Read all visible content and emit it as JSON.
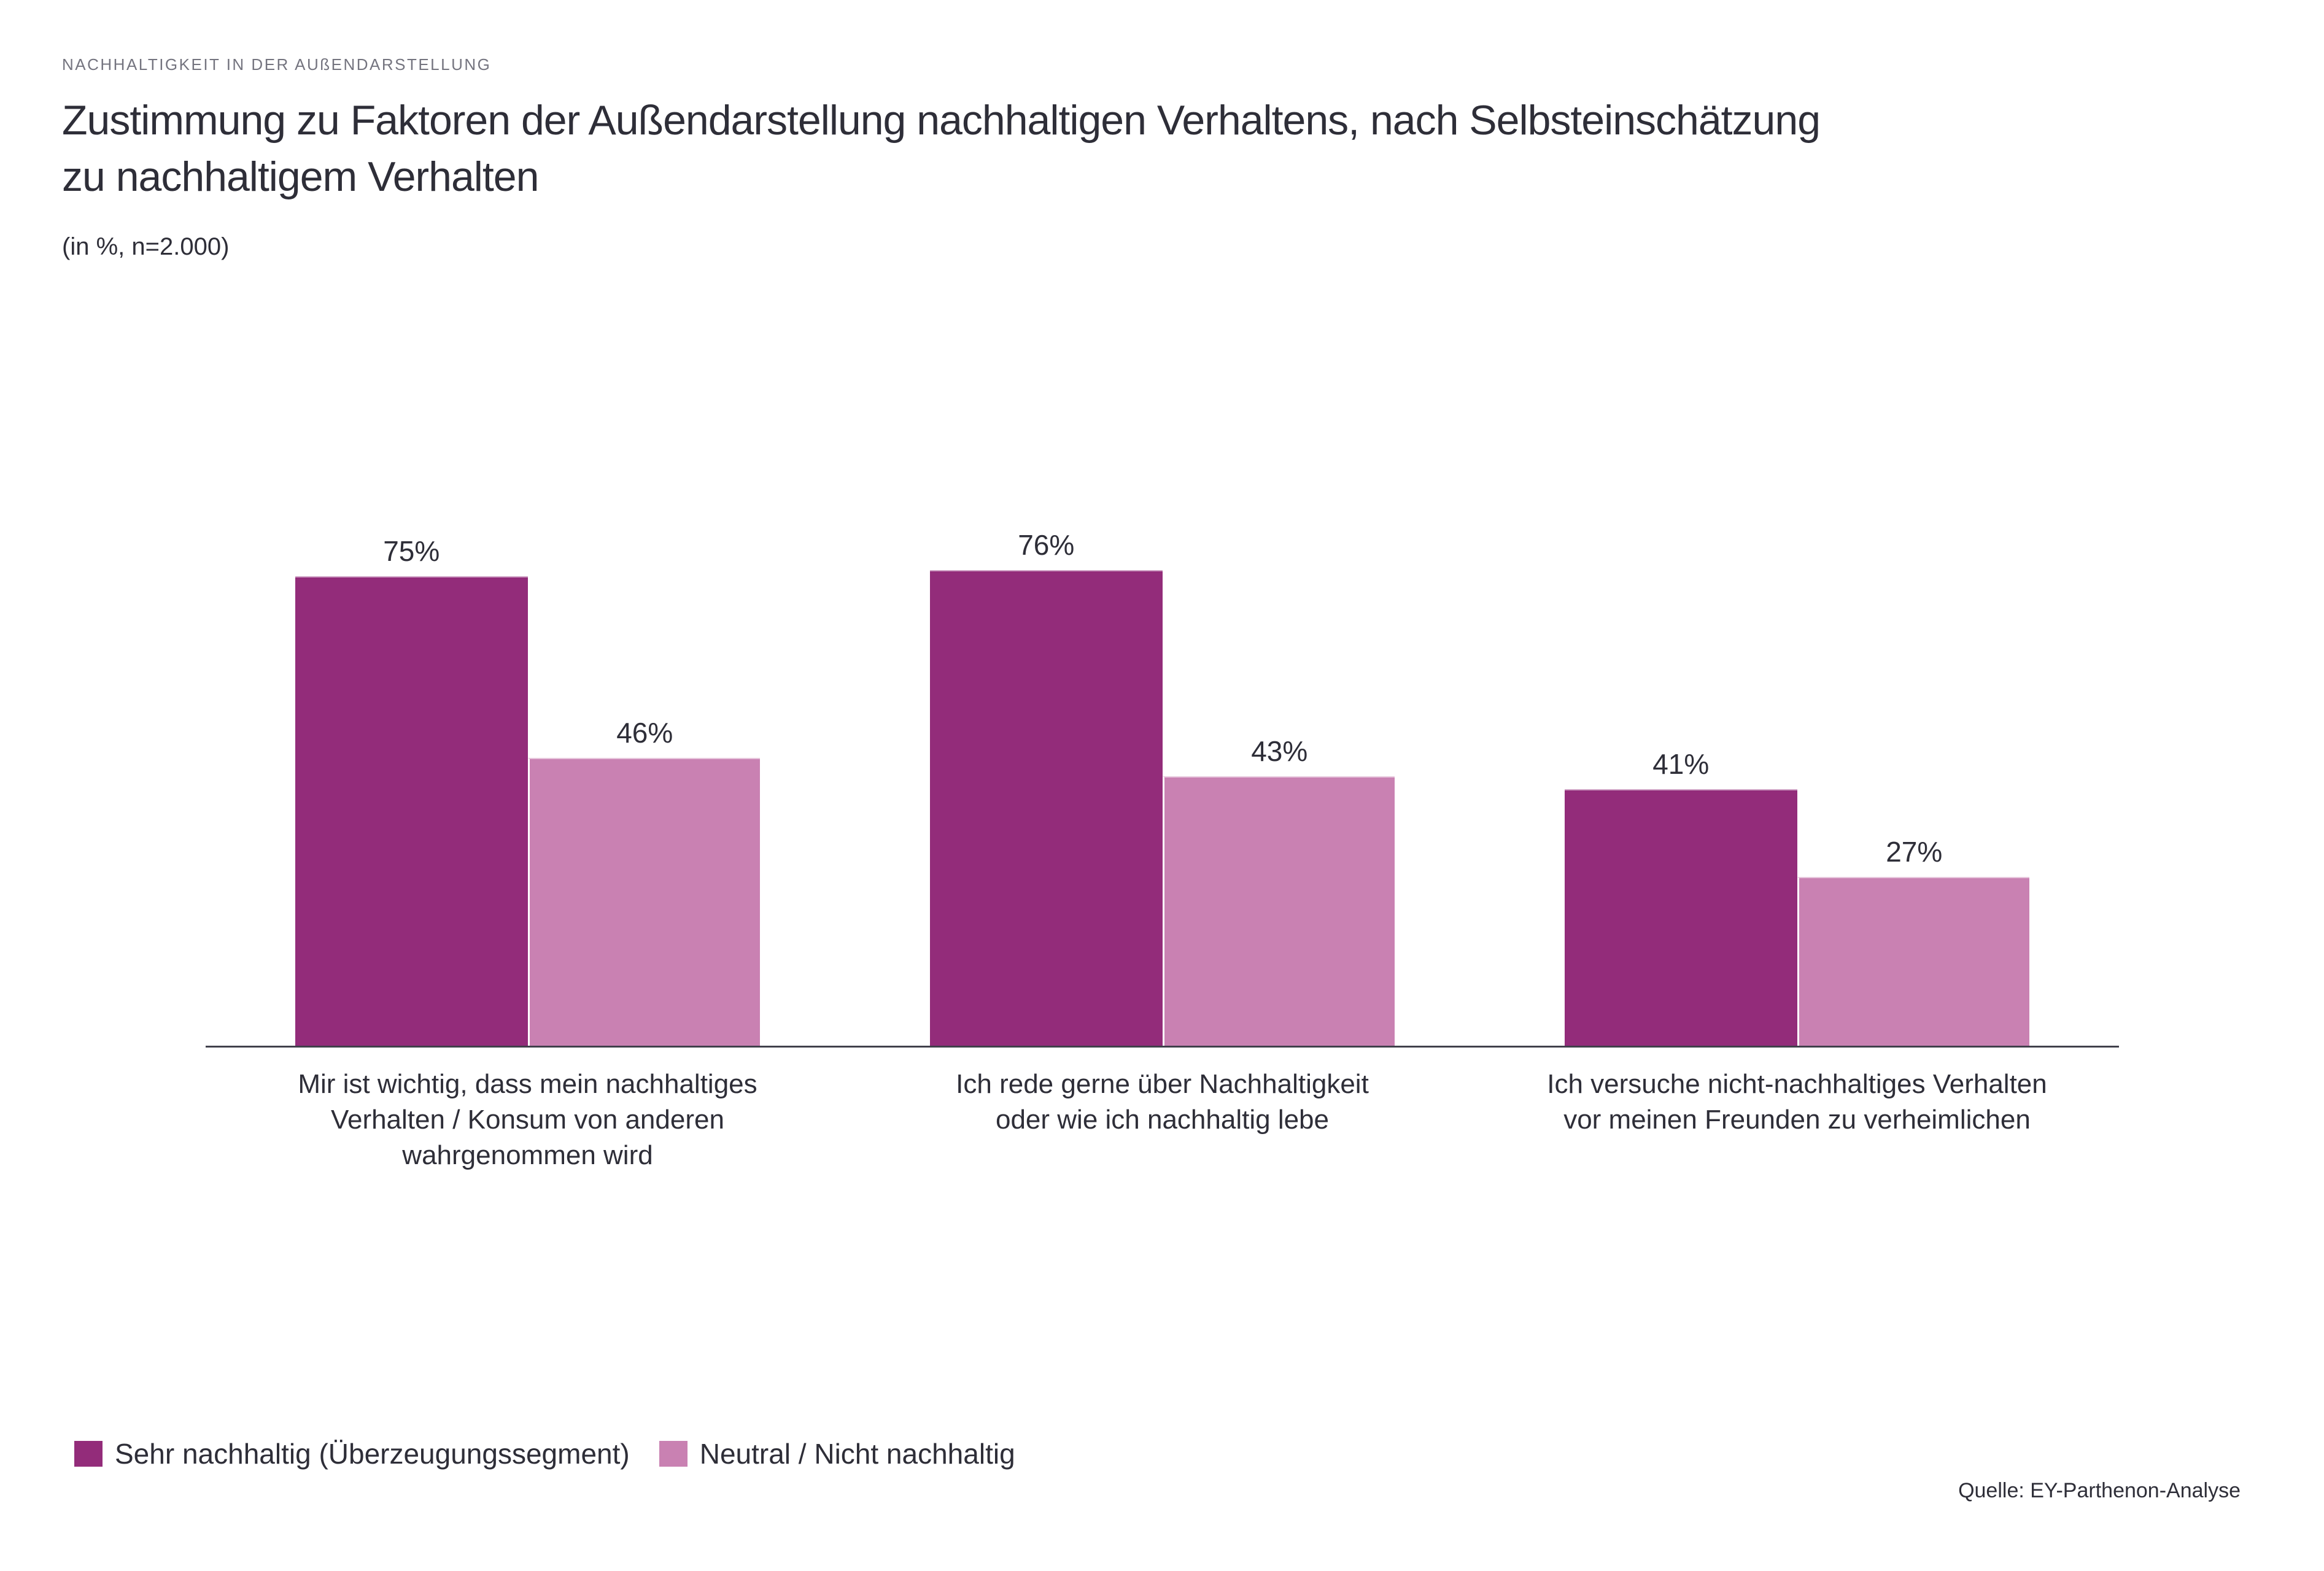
{
  "chart_data": {
    "type": "bar",
    "eyebrow": "NACHHALTIGKEIT IN DER AUßENDARSTELLUNG",
    "title": "Zustimmung zu Faktoren der Außendarstellung nachhaltigen Verhaltens, nach Selbsteinschätzung zu nachhaltigem Verhalten",
    "subtitle": "(in %, n=2.000)",
    "source": "Quelle: EY-Parthenon-Analyse",
    "unit": "%",
    "categories": [
      "Mir ist wichtig, dass mein nachhaltiges Verhalten / Konsum von anderen wahrgenommen wird",
      "Ich rede gerne über Nachhaltigkeit oder wie ich nachhaltig lebe",
      "Ich versuche nicht-nachhaltiges Verhalten vor meinen Freunden zu verheimlichen"
    ],
    "category_lines": [
      [
        "Mir ist wichtig, dass mein nachhaltiges",
        "Verhalten / Konsum von anderen",
        "wahrgenommen wird"
      ],
      [
        "Ich rede gerne über Nachhaltigkeit",
        "oder wie ich nachhaltig lebe"
      ],
      [
        "Ich versuche nicht-nachhaltiges Verhalten",
        "vor meinen Freunden zu verheimlichen"
      ]
    ],
    "series": [
      {
        "name": "Sehr nachhaltig (Überzeugungssegment)",
        "color": "#932C7A",
        "values": [
          75,
          76,
          41
        ]
      },
      {
        "name": "Neutral / Nicht nachhaltig",
        "color": "#C981B2",
        "values": [
          46,
          43,
          27
        ]
      }
    ],
    "ylim": [
      0,
      100
    ],
    "grid": false,
    "value_labels": true,
    "legend_position": "bottom-left",
    "colors": {
      "text": "#2E2E38",
      "muted_text": "#74747F",
      "axis": "#40404B",
      "background": "#ffffff"
    }
  }
}
